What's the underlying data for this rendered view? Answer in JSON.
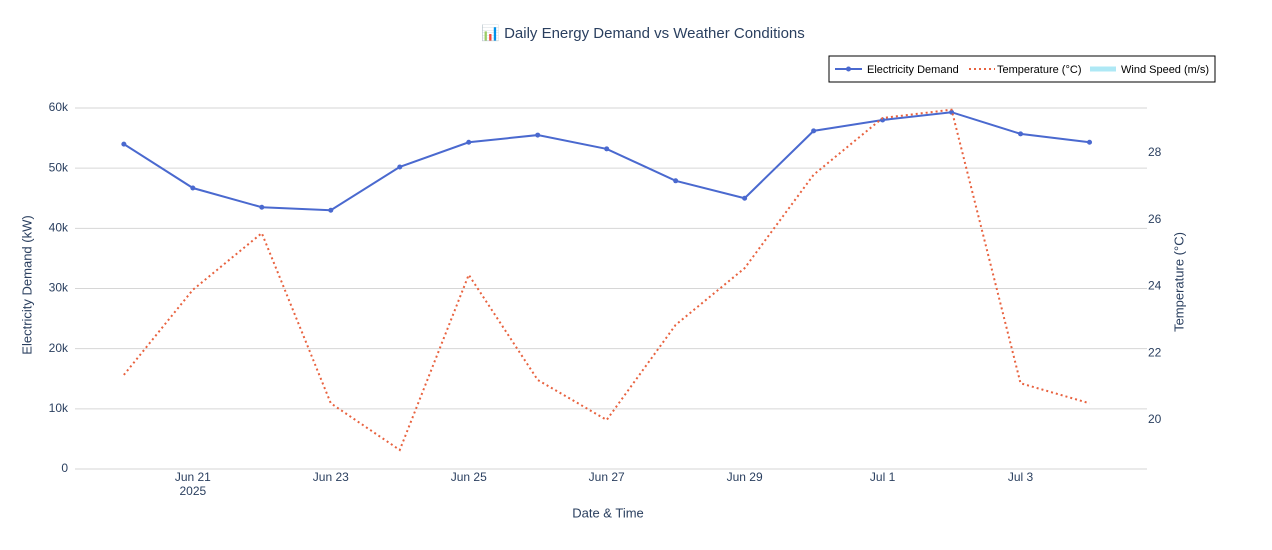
{
  "chart_data": {
    "type": "line",
    "title": "📊 Daily Energy Demand vs Weather Conditions",
    "x_label": "Date & Time",
    "y_label": "Electricity Demand (kW)",
    "y2_label": "Temperature (°C)",
    "x": [
      "2025-06-20",
      "2025-06-21",
      "2025-06-22",
      "2025-06-23",
      "2025-06-24",
      "2025-06-25",
      "2025-06-26",
      "2025-06-27",
      "2025-06-28",
      "2025-06-29",
      "2025-06-30",
      "2025-07-01",
      "2025-07-02",
      "2025-07-03",
      "2025-07-04"
    ],
    "series": [
      {
        "name": "Electricity Demand",
        "color": "#4a69cf",
        "values": [
          54000,
          46700,
          43500,
          43000,
          50200,
          54300,
          55500,
          53200,
          47900,
          45000,
          56200,
          58000,
          59300,
          55700,
          54300
        ]
      },
      {
        "name": "Temperature (°C)",
        "color": "#e8623f",
        "axis": "y2",
        "values": [
          21.35,
          23.9,
          25.6,
          20.5,
          19.1,
          24.35,
          21.2,
          20.0,
          22.85,
          24.55,
          27.35,
          29.05,
          29.3,
          21.1,
          20.5
        ]
      },
      {
        "name": "Wind Speed (m/s)",
        "color": "#aee8f5",
        "values": [
          null,
          null,
          null,
          null,
          null,
          null,
          null,
          null,
          null,
          null,
          null,
          null,
          null,
          null,
          null
        ]
      }
    ],
    "xlim": [
      "2025-06-19T07:00",
      "2025-07-04T20:00"
    ],
    "xticks": [
      {
        "value": "2025-06-21",
        "label": "Jun 21\n2025"
      },
      {
        "value": "2025-06-23",
        "label": "Jun 23"
      },
      {
        "value": "2025-06-25",
        "label": "Jun 25"
      },
      {
        "value": "2025-06-27",
        "label": "Jun 27"
      },
      {
        "value": "2025-06-29",
        "label": "Jun 29"
      },
      {
        "value": "2025-07-01",
        "label": "Jul 1"
      },
      {
        "value": "2025-07-03",
        "label": "Jul 3"
      }
    ],
    "ylim": [
      0,
      62160
    ],
    "yticks": [
      0,
      {
        "value": 10000,
        "label": "10k"
      },
      {
        "value": 20000,
        "label": "20k"
      },
      {
        "value": 30000,
        "label": "30k"
      },
      {
        "value": 40000,
        "label": "40k"
      },
      {
        "value": 50000,
        "label": "50k"
      },
      {
        "value": 60000,
        "label": "60k"
      }
    ],
    "y2lim": [
      18.53,
      29.74
    ],
    "y2ticks": [
      20,
      22,
      24,
      26,
      28
    ],
    "grid": true,
    "legend": "top-right"
  }
}
